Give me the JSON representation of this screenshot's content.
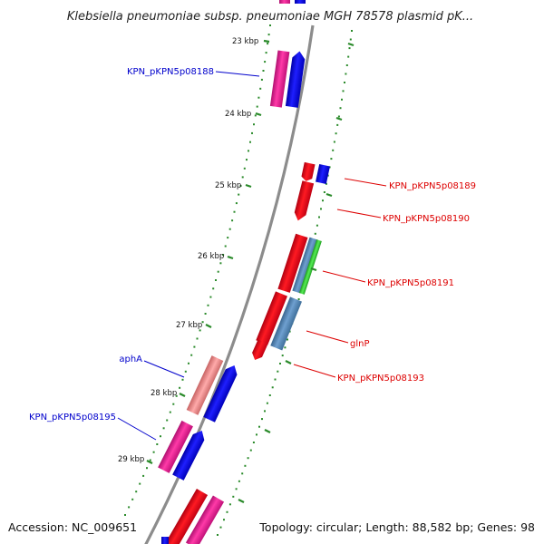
{
  "title": "Klebsiella pneumoniae subsp. pneumoniae MGH 78578 plasmid pK...",
  "accession": "Accession: NC_009651",
  "topology": "Topology: circular; Length: 88,582 bp; Genes: 98",
  "ticks": [
    "23 kbp",
    "24 kbp",
    "25 kbp",
    "26 kbp",
    "27 kbp",
    "28 kbp",
    "29 kbp"
  ],
  "labels": [
    {
      "text": "KPN_pKPN5p08188",
      "color": "#0000cc"
    },
    {
      "text": "KPN_pKPN5p08189",
      "color": "#dd0000"
    },
    {
      "text": "KPN_pKPN5p08190",
      "color": "#dd0000"
    },
    {
      "text": "KPN_pKPN5p08191",
      "color": "#dd0000"
    },
    {
      "text": "glnP",
      "color": "#dd0000"
    },
    {
      "text": "KPN_pKPN5p08193",
      "color": "#dd0000"
    },
    {
      "text": "aphA",
      "color": "#0000cc"
    },
    {
      "text": "KPN_pKPN5p08195",
      "color": "#0000cc"
    }
  ],
  "colors": {
    "backbone": "#8c8c8c",
    "tick_marks": "#2a8a2a",
    "red_gene": "#e8111a",
    "blue_gene": "#1010e0",
    "magenta_gene": "#e01f8c",
    "steel_gene": "#4f7fb0",
    "green_gene": "#33cc33",
    "pink_gene": "#e88a8a"
  }
}
